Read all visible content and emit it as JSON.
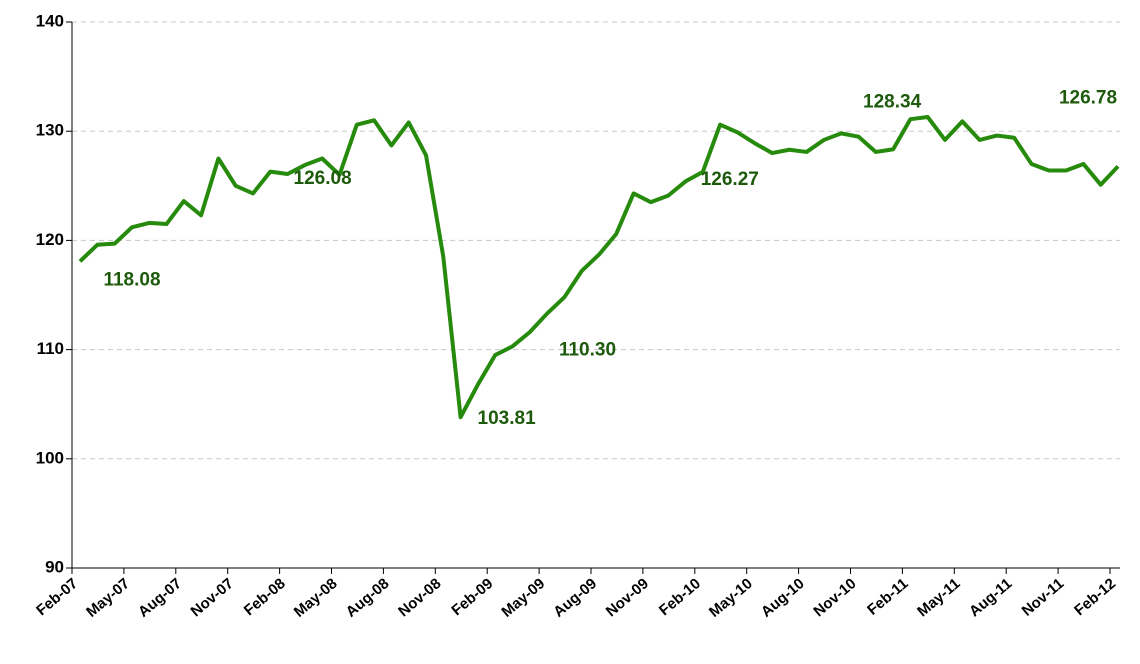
{
  "chart_data": {
    "type": "line",
    "categories": [
      "Feb-07",
      null,
      null,
      "May-07",
      null,
      null,
      "Aug-07",
      null,
      null,
      "Nov-07",
      null,
      null,
      "Feb-08",
      null,
      null,
      "May-08",
      null,
      null,
      "Aug-08",
      null,
      null,
      "Nov-08",
      null,
      null,
      "Feb-09",
      null,
      null,
      "May-09",
      null,
      null,
      "Aug-09",
      null,
      null,
      "Nov-09",
      null,
      null,
      "Feb-10",
      null,
      null,
      "May-10",
      null,
      null,
      "Aug-10",
      null,
      null,
      "Nov-10",
      null,
      null,
      "Feb-11",
      null,
      null,
      "May-11",
      null,
      null,
      "Aug-11",
      null,
      null,
      "Nov-11",
      null,
      null,
      "Feb-12"
    ],
    "series": [
      {
        "name": null,
        "color": "#268a0c",
        "values": [
          118.08,
          119.6,
          119.7,
          121.2,
          121.6,
          121.5,
          123.6,
          122.3,
          127.5,
          125.0,
          124.3,
          126.3,
          126.08,
          126.9,
          127.5,
          126.0,
          130.6,
          131.0,
          128.7,
          130.8,
          127.8,
          118.5,
          103.81,
          106.8,
          109.5,
          110.3,
          111.6,
          113.3,
          114.8,
          117.2,
          118.7,
          120.6,
          124.3,
          123.5,
          124.1,
          125.4,
          126.27,
          130.6,
          129.9,
          128.9,
          128.0,
          128.3,
          128.1,
          129.2,
          129.8,
          129.5,
          128.1,
          128.34,
          131.1,
          131.3,
          129.2,
          130.9,
          129.2,
          129.6,
          129.4,
          127.0,
          126.4,
          126.4,
          127.0,
          125.1,
          126.78
        ],
        "value_labels": [
          "118.08",
          null,
          null,
          null,
          null,
          null,
          null,
          null,
          null,
          null,
          null,
          null,
          "126.08",
          null,
          null,
          null,
          null,
          null,
          null,
          null,
          null,
          null,
          "103.81",
          null,
          null,
          "110.30",
          null,
          null,
          null,
          null,
          null,
          null,
          null,
          null,
          null,
          null,
          "126.27",
          null,
          null,
          null,
          null,
          null,
          null,
          null,
          null,
          null,
          null,
          "128.34",
          null,
          null,
          null,
          null,
          null,
          null,
          null,
          null,
          null,
          null,
          null,
          null,
          "126.78"
        ]
      }
    ],
    "ylim": [
      90,
      140
    ],
    "yticks": [
      90,
      100,
      110,
      120,
      130,
      140
    ],
    "grid": true
  }
}
